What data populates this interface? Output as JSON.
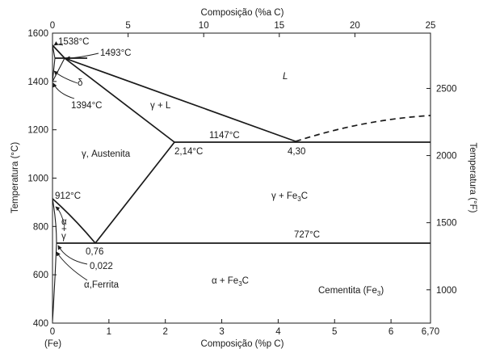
{
  "top_axis": {
    "title": "Composição (%a C)",
    "ticks": [
      "0",
      "5",
      "10",
      "15",
      "20",
      "25"
    ]
  },
  "bottom_axis": {
    "title": "Composição (%p C)",
    "ticks": [
      "0",
      "1",
      "2",
      "3",
      "4",
      "5",
      "6",
      "6,70"
    ],
    "origin_note": "(Fe)"
  },
  "left_axis": {
    "title": "Temperatura (°C)",
    "ticks": [
      "400",
      "600",
      "800",
      "1000",
      "1200",
      "1400",
      "1600"
    ]
  },
  "right_axis": {
    "title": "Temperatura (°F)",
    "ticks": [
      "1000",
      "1500",
      "2000",
      "2500"
    ]
  },
  "temperatures": {
    "t1538": "1538°C",
    "t1493": "1493°C",
    "t1394": "1394°C",
    "t1147": "1147°C",
    "t912": "912°C",
    "t727": "727°C"
  },
  "compositions": {
    "c214": "2,14°C",
    "c430": "4,30",
    "c076": "0,76",
    "c0022": "0,022"
  },
  "regions": {
    "liquid": "L",
    "gamma_liquid": "γ + L",
    "austenite": "γ, Austenita",
    "delta": "δ",
    "gamma_cementite": "γ + Fe",
    "alpha_cementite": "α + Fe",
    "ferrite": "α,Ferrita",
    "cementite": "Cementita (Fe",
    "cementite_close": ")",
    "fe3c_subscript": "3",
    "alpha_gamma_top": "α",
    "alpha_gamma_mid": "+",
    "alpha_gamma_bottom": "γ",
    "gamma_cementite_tail": "C",
    "alpha_cementite_tail": "C"
  },
  "chart_data": {
    "type": "phase-diagram",
    "x_axis": {
      "label": "Composição (%p C)",
      "range": [
        0,
        6.7
      ]
    },
    "x_axis_secondary": {
      "label": "Composição (%a C)",
      "range": [
        0,
        25
      ]
    },
    "y_axis": {
      "label": "Temperatura (°C)",
      "range": [
        400,
        1600
      ]
    },
    "y_axis_secondary": {
      "label": "Temperatura (°F)",
      "ticks": [
        1000,
        1500,
        2000,
        2500
      ]
    },
    "key_points": [
      {
        "label": "1538°C",
        "wt_pct_C": 0,
        "temp_C": 1538
      },
      {
        "label": "1493°C",
        "wt_pct_C": 0.17,
        "temp_C": 1493
      },
      {
        "label": "1394°C",
        "wt_pct_C": 0,
        "temp_C": 1394
      },
      {
        "label": "1147°C",
        "wt_pct_C": 4.3,
        "temp_C": 1147
      },
      {
        "label": "912°C",
        "wt_pct_C": 0,
        "temp_C": 912
      },
      {
        "label": "727°C",
        "wt_pct_C": 0.76,
        "temp_C": 727
      },
      {
        "label": "2,14",
        "wt_pct_C": 2.14,
        "temp_C": 1147
      },
      {
        "label": "4,30",
        "wt_pct_C": 4.3,
        "temp_C": 1147
      },
      {
        "label": "0,76",
        "wt_pct_C": 0.76,
        "temp_C": 727
      },
      {
        "label": "0,022",
        "wt_pct_C": 0.022,
        "temp_C": 727
      }
    ],
    "regions": [
      "L",
      "γ + L",
      "γ, Austenita",
      "δ",
      "γ + Fe3C",
      "α + Fe3C",
      "α,Ferrita",
      "Cementita (Fe3C)",
      "α + γ"
    ]
  }
}
